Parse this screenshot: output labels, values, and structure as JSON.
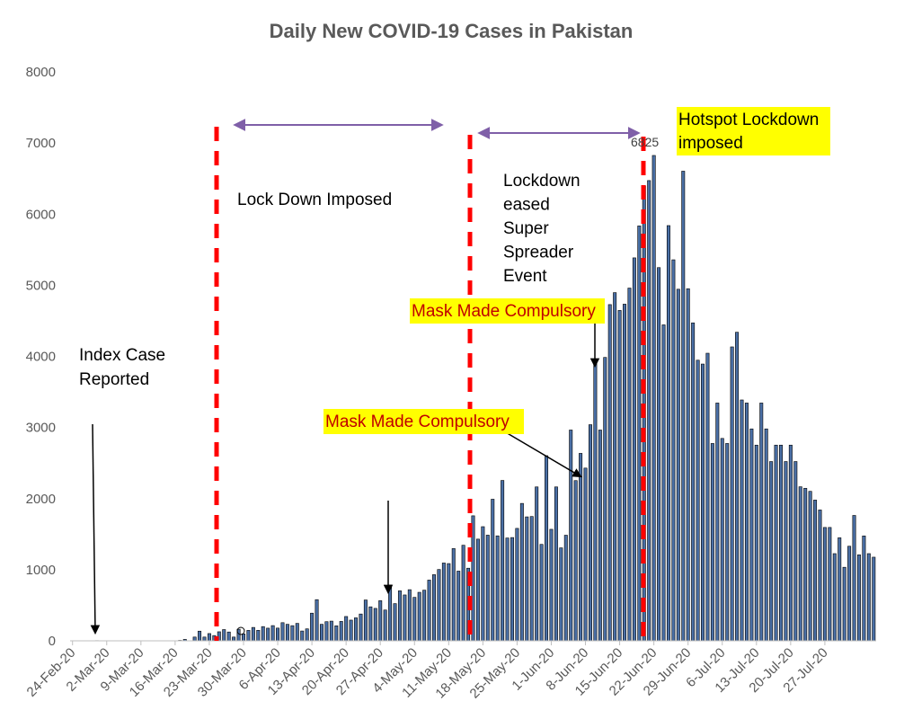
{
  "chart_data": {
    "type": "bar",
    "title": "Daily New COVID-19 Cases in Pakistan",
    "xlabel": "",
    "ylabel": "",
    "ylim": [
      0,
      8000
    ],
    "yticks": [
      0,
      1000,
      2000,
      3000,
      4000,
      5000,
      6000,
      7000,
      8000
    ],
    "date_range": [
      "24-Feb-20",
      "27-Jul-20"
    ],
    "x_tick_labels": [
      "24-Feb-20",
      "2-Mar-20",
      "9-Mar-20",
      "16-Mar-20",
      "23-Mar-20",
      "30-Mar-20",
      "6-Apr-20",
      "13-Apr-20",
      "20-Apr-20",
      "27-Apr-20",
      "4-May-20",
      "11-May-20",
      "18-May-20",
      "25-May-20",
      "1-Jun-20",
      "8-Jun-20",
      "15-Jun-20",
      "22-Jun-20",
      "29-Jun-20",
      "6-Jul-20",
      "13-Jul-20",
      "20-Jul-20",
      "27-Jul-20"
    ],
    "series": [
      {
        "name": "Daily new cases",
        "color": "#4a6fa5",
        "values": [
          0,
          0,
          0,
          2,
          0,
          3,
          0,
          0,
          0,
          0,
          0,
          0,
          0,
          0,
          0,
          0,
          0,
          0,
          0,
          0,
          1,
          1,
          6,
          20,
          1,
          53,
          136,
          53,
          102,
          74,
          127,
          158,
          124,
          53,
          163,
          97,
          147,
          188,
          148,
          200,
          178,
          214,
          179,
          255,
          232,
          213,
          245,
          138,
          168,
          389,
          579,
          232,
          269,
          277,
          211,
          273,
          342,
          291,
          323,
          377,
          574,
          478,
          456,
          564,
          433,
          785,
          523,
          703,
          645,
          719,
          611,
          682,
          712,
          854,
          930,
          1003,
          1094,
          1086,
          1297,
          980,
          1344,
          1021,
          1758,
          1430,
          1605,
          1486,
          1991,
          1476,
          2255,
          1446,
          1452,
          1581,
          1932,
          1743,
          1748,
          2164,
          1356,
          2603,
          1568,
          2164,
          1307,
          1485,
          2964,
          2253,
          2636,
          2429,
          3039,
          3938,
          2964,
          3985,
          4728,
          4896,
          4646,
          4734,
          4960,
          5385,
          5834,
          6397,
          6472,
          6825,
          5248,
          4443,
          5839,
          5358,
          4944,
          6604,
          4951,
          4471,
          3946,
          3892,
          4044,
          2775,
          3344,
          2846,
          2775,
          4133,
          4339,
          3387,
          3344,
          2980,
          2752,
          3344,
          2980,
          2521,
          2752,
          2752,
          2521,
          2752,
          2521,
          2166,
          2145,
          2102,
          1979,
          1840,
          1594,
          1594,
          1226,
          1449,
          1034,
          1330,
          1763,
          1209,
          1475,
          1226,
          1176
        ]
      }
    ],
    "annotations": {
      "index_case": [
        "Index Case",
        "Reported"
      ],
      "lockdown": "Lock Down Imposed",
      "eased": [
        "Lockdown",
        "eased",
        "Super",
        "Spreader",
        "Event"
      ],
      "mask1": "Mask Made Compulsory",
      "mask2": "Mask Made Compulsory",
      "hotspot": [
        "Hotspot Lockdown",
        "imposed"
      ],
      "peak_label": "6825"
    },
    "colors": {
      "bar_fill": "#4a6fa5",
      "bar_edge": "#000000",
      "vline": "#ff0000",
      "arrow_range": "#7f5fa8",
      "highlight": "#ffff00",
      "axis": "#bfbfbf"
    }
  }
}
